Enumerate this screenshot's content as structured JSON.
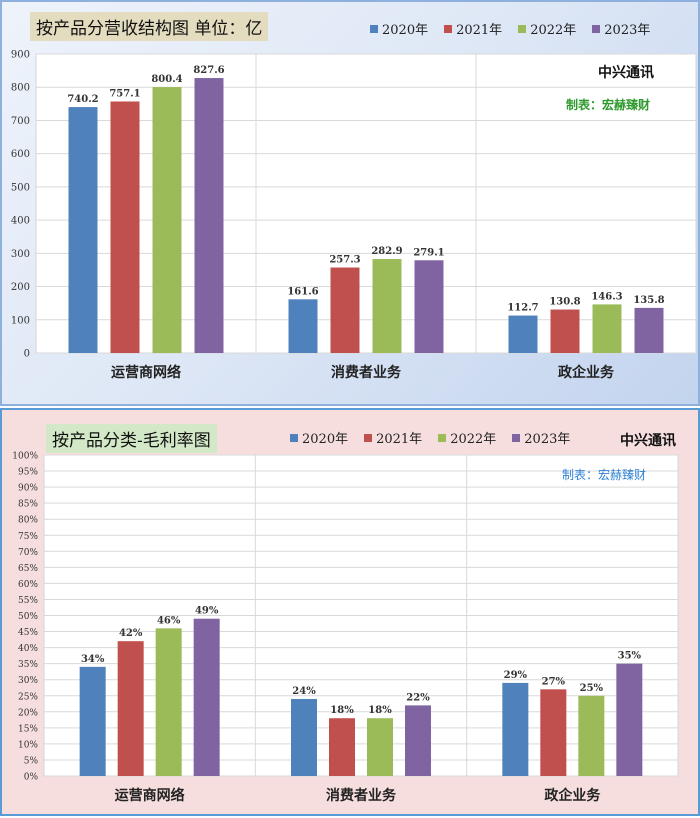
{
  "charts": [
    {
      "title": "按产品分营收结构图 单位：亿",
      "company": "中兴通讯",
      "credit": "制表：宏赫臻财",
      "legend": [
        "2020年",
        "2021年",
        "2022年",
        "2023年"
      ]
    },
    {
      "title": "按产品分类-毛利率图",
      "company": "中兴通讯",
      "credit": "制表：宏赫臻财",
      "legend": [
        "2020年",
        "2021年",
        "2022年",
        "2023年"
      ]
    }
  ],
  "colors": {
    "series": [
      "#4f81bd",
      "#c0504d",
      "#9bbb59",
      "#8064a2"
    ]
  },
  "chart_data": [
    {
      "type": "bar",
      "title": "按产品分营收结构图 单位：亿",
      "categories": [
        "运营商网络",
        "消费者业务",
        "政企业务"
      ],
      "series": [
        {
          "name": "2020年",
          "values": [
            740.2,
            161.6,
            112.7
          ]
        },
        {
          "name": "2021年",
          "values": [
            757.1,
            257.3,
            130.8
          ]
        },
        {
          "name": "2022年",
          "values": [
            800.4,
            282.9,
            146.3
          ]
        },
        {
          "name": "2023年",
          "values": [
            827.6,
            279.1,
            135.8
          ]
        }
      ],
      "data_labels": [
        [
          "740.2",
          "161.6",
          "112.7"
        ],
        [
          "757.1",
          "257.3",
          "130.8"
        ],
        [
          "800.4",
          "282.9",
          "146.3"
        ],
        [
          "827.6",
          "279.1",
          "135.8"
        ]
      ],
      "yticks": [
        "0",
        "100",
        "200",
        "300",
        "400",
        "500",
        "600",
        "700",
        "800",
        "900"
      ],
      "ylim": [
        0,
        900
      ],
      "grid": true,
      "legend_position": "top-right"
    },
    {
      "type": "bar",
      "title": "按产品分类-毛利率图",
      "categories": [
        "运营商网络",
        "消费者业务",
        "政企业务"
      ],
      "series": [
        {
          "name": "2020年",
          "values": [
            34,
            24,
            29
          ]
        },
        {
          "name": "2021年",
          "values": [
            42,
            18,
            27
          ]
        },
        {
          "name": "2022年",
          "values": [
            46,
            18,
            25
          ]
        },
        {
          "name": "2023年",
          "values": [
            49,
            22,
            35
          ]
        }
      ],
      "data_labels": [
        [
          "34%",
          "24%",
          "29%"
        ],
        [
          "42%",
          "18%",
          "27%"
        ],
        [
          "46%",
          "18%",
          "25%"
        ],
        [
          "49%",
          "22%",
          "35%"
        ]
      ],
      "yticks": [
        "0%",
        "5%",
        "10%",
        "15%",
        "20%",
        "25%",
        "30%",
        "35%",
        "40%",
        "45%",
        "50%",
        "55%",
        "60%",
        "65%",
        "70%",
        "75%",
        "80%",
        "85%",
        "90%",
        "95%",
        "100%"
      ],
      "ylim": [
        0,
        100
      ],
      "grid": true,
      "legend_position": "top"
    }
  ]
}
